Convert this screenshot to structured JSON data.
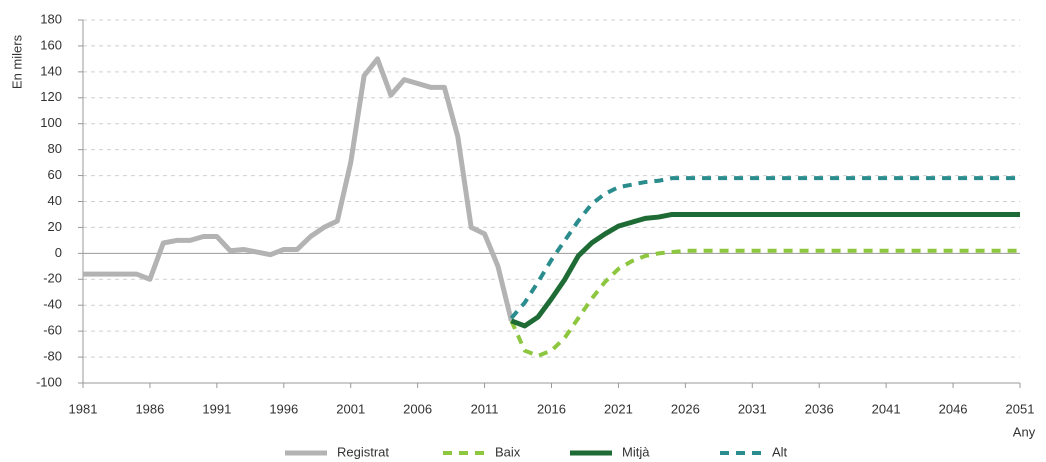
{
  "chart_data": {
    "type": "line",
    "ylabel": "En milers",
    "xlabel": "Any",
    "x": [
      1981,
      1982,
      1983,
      1984,
      1985,
      1986,
      1987,
      1988,
      1989,
      1990,
      1991,
      1992,
      1993,
      1994,
      1995,
      1996,
      1997,
      1998,
      1999,
      2000,
      2001,
      2002,
      2003,
      2004,
      2005,
      2006,
      2007,
      2008,
      2009,
      2010,
      2011,
      2012,
      2013,
      2014,
      2015,
      2016,
      2017,
      2018,
      2019,
      2020,
      2021,
      2022,
      2023,
      2024,
      2025,
      2026,
      2027,
      2028,
      2029,
      2030,
      2031,
      2032,
      2033,
      2034,
      2035,
      2036,
      2037,
      2038,
      2039,
      2040,
      2041,
      2042,
      2043,
      2044,
      2045,
      2046,
      2047,
      2048,
      2049,
      2050,
      2051
    ],
    "series": [
      {
        "name": "Registrat",
        "color": "#b3b3b3",
        "dashed": false,
        "values": [
          -16,
          -16,
          -16,
          -16,
          -16,
          -20,
          8,
          10,
          10,
          13,
          13,
          2,
          3,
          1,
          -1,
          3,
          3,
          13,
          20,
          25,
          70,
          137,
          150,
          122,
          134,
          131,
          128,
          128,
          90,
          20,
          15,
          -10,
          -52,
          null,
          null,
          null,
          null,
          null,
          null,
          null,
          null,
          null,
          null,
          null,
          null,
          null,
          null,
          null,
          null,
          null,
          null,
          null,
          null,
          null,
          null,
          null,
          null,
          null,
          null,
          null,
          null,
          null,
          null,
          null,
          null,
          null,
          null,
          null,
          null,
          null,
          null
        ]
      },
      {
        "name": "Baix",
        "color": "#8dc63f",
        "dashed": true,
        "values": [
          null,
          null,
          null,
          null,
          null,
          null,
          null,
          null,
          null,
          null,
          null,
          null,
          null,
          null,
          null,
          null,
          null,
          null,
          null,
          null,
          null,
          null,
          null,
          null,
          null,
          null,
          null,
          null,
          null,
          null,
          null,
          null,
          -52,
          -75,
          -79,
          -75,
          -65,
          -50,
          -35,
          -22,
          -12,
          -6,
          -2,
          0,
          1,
          2,
          2,
          2,
          2,
          2,
          2,
          2,
          2,
          2,
          2,
          2,
          2,
          2,
          2,
          2,
          2,
          2,
          2,
          2,
          2,
          2,
          2,
          2,
          2,
          2,
          2
        ]
      },
      {
        "name": "Mitjà",
        "color": "#1e6b35",
        "dashed": false,
        "values": [
          null,
          null,
          null,
          null,
          null,
          null,
          null,
          null,
          null,
          null,
          null,
          null,
          null,
          null,
          null,
          null,
          null,
          null,
          null,
          null,
          null,
          null,
          null,
          null,
          null,
          null,
          null,
          null,
          null,
          null,
          null,
          null,
          -52,
          -56,
          -49,
          -35,
          -20,
          -2,
          8,
          15,
          21,
          24,
          27,
          28,
          30,
          30,
          30,
          30,
          30,
          30,
          30,
          30,
          30,
          30,
          30,
          30,
          30,
          30,
          30,
          30,
          30,
          30,
          30,
          30,
          30,
          30,
          30,
          30,
          30,
          30,
          30
        ]
      },
      {
        "name": "Alt",
        "color": "#2a8c8c",
        "dashed": true,
        "values": [
          null,
          null,
          null,
          null,
          null,
          null,
          null,
          null,
          null,
          null,
          null,
          null,
          null,
          null,
          null,
          null,
          null,
          null,
          null,
          null,
          null,
          null,
          null,
          null,
          null,
          null,
          null,
          null,
          null,
          null,
          null,
          null,
          -50,
          -38,
          -22,
          -5,
          10,
          25,
          38,
          46,
          51,
          53,
          55,
          56,
          58,
          58,
          58,
          58,
          58,
          58,
          58,
          58,
          58,
          58,
          58,
          58,
          58,
          58,
          58,
          58,
          58,
          58,
          58,
          58,
          58,
          58,
          58,
          58,
          58,
          58,
          58
        ]
      }
    ],
    "xlim": [
      1981,
      2051
    ],
    "xticks": [
      1981,
      1986,
      1991,
      1996,
      2001,
      2006,
      2011,
      2016,
      2021,
      2026,
      2031,
      2036,
      2041,
      2046,
      2051
    ],
    "ylim": [
      -100,
      180
    ],
    "yticks": [
      -100,
      -80,
      -60,
      -40,
      -20,
      0,
      20,
      40,
      60,
      80,
      100,
      120,
      140,
      160,
      180
    ],
    "grid": true,
    "legend": "bottom"
  }
}
